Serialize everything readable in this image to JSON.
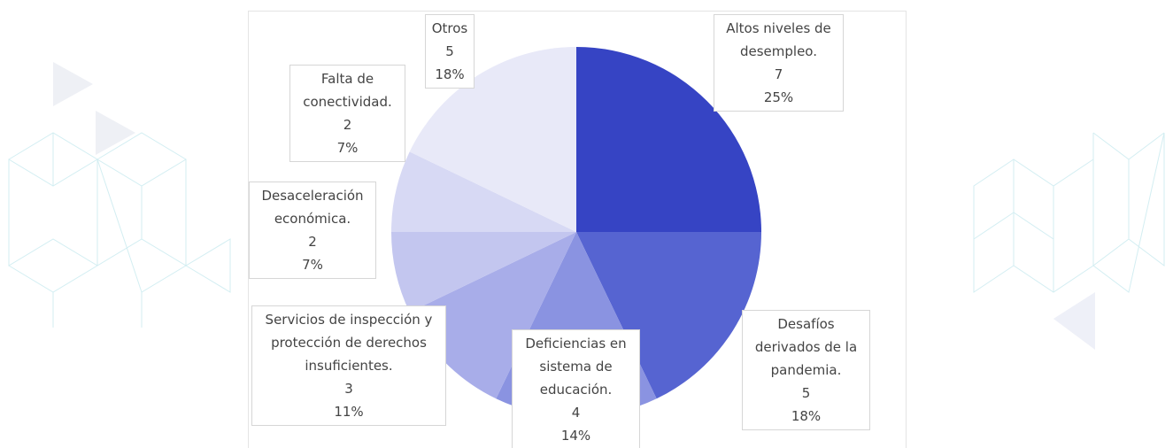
{
  "chart_data": {
    "type": "pie",
    "categories": [
      "Altos niveles de desempleo.",
      "Desafíos derivados de la pandemia.",
      "Deficiencias en sistema de educación.",
      "Servicios de inspección y protección de derechos insuficientes.",
      "Desaceleración económica.",
      "Falta de conectividad.",
      "Otros"
    ],
    "values": [
      7,
      5,
      4,
      3,
      2,
      2,
      5
    ],
    "percent_labels": [
      "25%",
      "18%",
      "14%",
      "11%",
      "7%",
      "7%",
      "18%"
    ],
    "colors": [
      "#3644c4",
      "#5664d1",
      "#8a93e1",
      "#a8ade9",
      "#c3c6ef",
      "#d7d9f4",
      "#e8e9f8"
    ]
  }
}
